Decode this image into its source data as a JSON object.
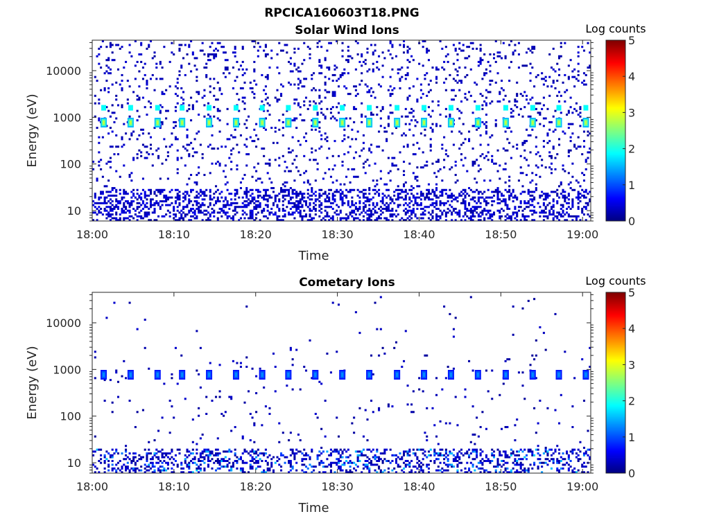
{
  "figure_title": "RPCICA160603T18.PNG",
  "chart_data": [
    {
      "type": "heatmap",
      "title": "Solar Wind Ions",
      "xlabel": "Time",
      "ylabel": "Energy (eV)",
      "yscale": "log",
      "ylim": [
        6,
        45000
      ],
      "xlim_minutes": [
        0,
        61
      ],
      "x_tick_values": [
        0,
        10,
        20,
        30,
        40,
        50,
        60
      ],
      "x_tick_labels": [
        "18:00",
        "18:10",
        "18:20",
        "18:30",
        "18:40",
        "18:50",
        "19:00"
      ],
      "y_tick_values": [
        10,
        100,
        1000,
        10000
      ],
      "y_tick_labels": [
        "10",
        "100",
        "1000",
        "10000"
      ],
      "colorbar": {
        "label": "Log counts",
        "range": [
          0,
          5
        ],
        "ticks": [
          "0",
          "1",
          "2",
          "3",
          "4",
          "5"
        ],
        "colormap": "jet"
      },
      "feature_times_minutes": [
        1.4,
        4.7,
        8.0,
        11.0,
        14.3,
        17.6,
        20.8,
        24.0,
        27.3,
        30.6,
        33.9,
        37.3,
        40.6,
        43.9,
        47.2,
        50.6,
        53.9,
        57.1,
        60.4
      ],
      "peak_energy_eV": 770,
      "secondary_energy_eV": 1600,
      "peak_log_counts": 2.8,
      "secondary_log_counts": 1.9,
      "background_log_counts": 0.15,
      "low_energy_band_eV": [
        6,
        30
      ]
    },
    {
      "type": "heatmap",
      "title": "Cometary Ions",
      "xlabel": "Time",
      "ylabel": "Energy (eV)",
      "yscale": "log",
      "ylim": [
        6,
        45000
      ],
      "xlim_minutes": [
        0,
        61
      ],
      "x_tick_values": [
        0,
        10,
        20,
        30,
        40,
        50,
        60
      ],
      "x_tick_labels": [
        "18:00",
        "18:10",
        "18:20",
        "18:30",
        "18:40",
        "18:50",
        "19:00"
      ],
      "y_tick_values": [
        10,
        100,
        1000,
        10000
      ],
      "y_tick_labels": [
        "10",
        "100",
        "1000",
        "10000"
      ],
      "colorbar": {
        "label": "Log counts",
        "range": [
          0,
          5
        ],
        "ticks": [
          "0",
          "1",
          "2",
          "3",
          "4",
          "5"
        ],
        "colormap": "jet"
      },
      "feature_times_minutes": [
        1.4,
        4.7,
        8.0,
        11.0,
        14.3,
        17.6,
        20.8,
        24.0,
        27.3,
        30.6,
        33.9,
        37.3,
        40.6,
        43.9,
        47.2,
        50.6,
        53.9,
        57.1,
        60.4
      ],
      "peak_energy_eV": 770,
      "peak_log_counts": 1.3,
      "background_log_counts": 0.1,
      "low_energy_band_eV": [
        6,
        20
      ],
      "low_energy_log_counts": 1.5
    }
  ]
}
